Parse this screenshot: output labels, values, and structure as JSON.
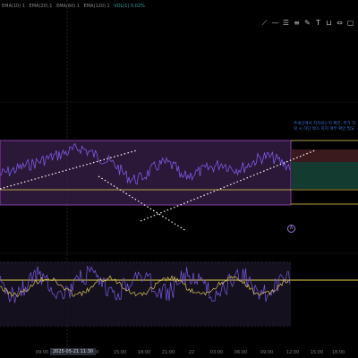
{
  "header": {
    "indicators": [
      {
        "label": "EMA(10) 1",
        "color": "#b9b9c0"
      },
      {
        "label": "EMA(20) 1",
        "color": "#b9b9c0"
      },
      {
        "label": "EMA(60) 1",
        "color": "#b9b9c0"
      },
      {
        "label": "EMA(120) 1",
        "color": "#b9b9c0"
      },
      {
        "label": "VOL(1) 0.02%",
        "color": "#26a69a"
      }
    ]
  },
  "toolbar": {
    "tools": [
      {
        "name": "trend-line-icon",
        "glyph": "⟋"
      },
      {
        "name": "horizontal-line-icon",
        "glyph": "—"
      },
      {
        "name": "parallel-channel-icon",
        "glyph": "☰"
      },
      {
        "name": "fib-icon",
        "glyph": "≡"
      },
      {
        "name": "brush-icon",
        "glyph": "✎"
      },
      {
        "name": "text-icon",
        "glyph": "T"
      },
      {
        "name": "shapes-icon",
        "glyph": "⊔"
      },
      {
        "name": "measure-icon",
        "glyph": "⇔"
      },
      {
        "name": "clear-icon",
        "glyph": "▢"
      }
    ]
  },
  "annotation": {
    "text": "추세선에서 지지되는지 확인, 추가 하락 시 하단 박스 지지 여부 확인 필요"
  },
  "alert": {
    "glyph": "A"
  },
  "time_axis": {
    "ticks": [
      "09:00",
      "12:00",
      "15:00",
      "18:00",
      "21:00",
      "22",
      "03:00",
      "06:00",
      "09:00",
      "12:00",
      "15:00",
      "18:00",
      "21:00"
    ],
    "current_label": "2025-05-21 11:30"
  },
  "colors": {
    "zone_fill": "#3a1f4a",
    "zone_border": "#a24ad0",
    "yellow": "#e8d44d",
    "price": "#7b5ae6",
    "green_zone": "#143b2f",
    "red_zone": "#3b1a1e",
    "osc_yellow": "#e8d44d"
  }
}
